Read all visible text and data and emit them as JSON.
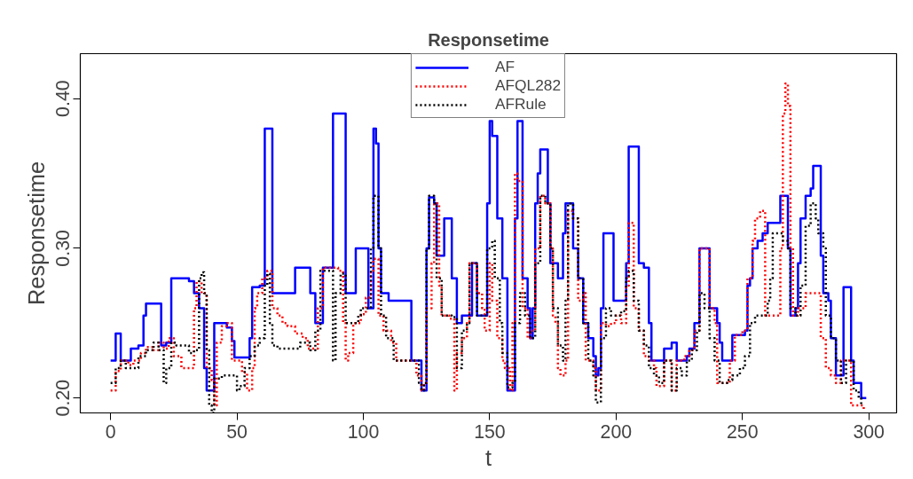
{
  "chart_data": {
    "type": "step",
    "title": "Responsetime",
    "xlabel": "t",
    "ylabel": "Responsetime",
    "xlim": [
      -12,
      311
    ],
    "ylim": [
      0.19,
      0.43
    ],
    "xticks": [
      0,
      50,
      100,
      150,
      200,
      250,
      300
    ],
    "yticks": [
      {
        "value": 0.2,
        "label": "0.20"
      },
      {
        "value": 0.3,
        "label": "0.30"
      },
      {
        "value": 0.4,
        "label": "0.40"
      }
    ],
    "grid": false,
    "legend": "top",
    "series": [
      {
        "name": "AF",
        "color": "#0000ff",
        "line_style": "solid",
        "x": [
          0,
          2,
          4,
          7,
          8,
          11,
          13,
          14,
          20,
          22,
          24,
          29,
          31,
          33,
          35,
          37,
          38,
          40,
          41,
          46,
          48,
          49,
          54,
          55,
          56,
          59,
          61,
          63,
          64,
          71,
          73,
          78,
          79,
          81,
          83,
          84,
          87,
          88,
          91,
          93,
          96,
          97,
          101,
          102,
          103,
          104,
          105,
          106,
          107,
          110,
          117,
          119,
          123,
          124,
          125,
          126,
          128,
          129,
          131,
          132,
          134,
          135,
          137,
          139,
          142,
          143,
          144,
          145,
          148,
          149,
          150,
          151,
          153,
          155,
          157,
          159,
          160,
          161,
          163,
          165,
          166,
          167,
          168,
          169,
          170,
          172,
          173,
          174,
          175,
          177,
          179,
          180,
          182,
          183,
          185,
          187,
          189,
          190,
          191,
          192,
          193,
          194,
          195,
          198,
          199,
          202,
          204,
          205,
          208,
          209,
          211,
          213,
          214,
          218,
          219,
          221,
          222,
          224,
          225,
          228,
          229,
          231,
          233,
          236,
          237,
          239,
          240,
          241,
          242,
          245,
          246,
          249,
          251,
          252,
          253,
          254,
          256,
          258,
          260,
          264,
          265,
          267,
          268,
          269,
          271,
          272,
          273,
          275,
          277,
          278,
          280,
          281,
          282,
          284,
          285,
          287,
          289,
          290,
          292,
          293,
          294,
          297,
          299
        ],
        "values": [
          0.225,
          0.243,
          0.225,
          0.225,
          0.233,
          0.235,
          0.255,
          0.263,
          0.235,
          0.237,
          0.28,
          0.28,
          0.278,
          0.27,
          0.26,
          0.22,
          0.205,
          0.205,
          0.25,
          0.247,
          0.238,
          0.227,
          0.227,
          0.24,
          0.274,
          0.275,
          0.38,
          0.38,
          0.27,
          0.27,
          0.287,
          0.287,
          0.27,
          0.25,
          0.25,
          0.287,
          0.287,
          0.39,
          0.39,
          0.27,
          0.27,
          0.3,
          0.3,
          0.26,
          0.26,
          0.38,
          0.37,
          0.3,
          0.27,
          0.265,
          0.265,
          0.225,
          0.205,
          0.205,
          0.3,
          0.334,
          0.33,
          0.295,
          0.295,
          0.32,
          0.32,
          0.28,
          0.25,
          0.255,
          0.255,
          0.29,
          0.29,
          0.255,
          0.255,
          0.33,
          0.385,
          0.375,
          0.32,
          0.28,
          0.205,
          0.205,
          0.32,
          0.385,
          0.28,
          0.26,
          0.24,
          0.26,
          0.33,
          0.35,
          0.366,
          0.366,
          0.33,
          0.29,
          0.29,
          0.28,
          0.31,
          0.33,
          0.33,
          0.3,
          0.28,
          0.25,
          0.24,
          0.24,
          0.228,
          0.215,
          0.22,
          0.26,
          0.31,
          0.31,
          0.265,
          0.265,
          0.29,
          0.368,
          0.368,
          0.29,
          0.287,
          0.25,
          0.225,
          0.225,
          0.233,
          0.233,
          0.237,
          0.225,
          0.225,
          0.228,
          0.233,
          0.25,
          0.3,
          0.3,
          0.26,
          0.26,
          0.25,
          0.237,
          0.225,
          0.225,
          0.242,
          0.242,
          0.245,
          0.275,
          0.28,
          0.3,
          0.305,
          0.31,
          0.317,
          0.317,
          0.335,
          0.335,
          0.3,
          0.255,
          0.26,
          0.29,
          0.32,
          0.335,
          0.34,
          0.355,
          0.355,
          0.295,
          0.27,
          0.265,
          0.24,
          0.215,
          0.215,
          0.274,
          0.274,
          0.225,
          0.21,
          0.2,
          0.2
        ]
      },
      {
        "name": "AFQL282",
        "color": "#ff0000",
        "line_style": "dotted",
        "x": [
          0,
          2,
          4,
          7,
          9,
          12,
          14,
          17,
          19,
          21,
          23,
          25,
          28,
          31,
          33,
          34,
          36,
          38,
          40,
          41,
          42,
          44,
          46,
          48,
          50,
          52,
          54,
          56,
          57,
          58,
          60,
          62,
          64,
          66,
          68,
          70,
          73,
          76,
          78,
          80,
          82,
          84,
          88,
          90,
          92,
          93,
          94,
          96,
          99,
          101,
          103,
          104,
          106,
          108,
          111,
          113,
          120,
          121,
          123,
          124,
          125,
          127,
          128,
          130,
          131,
          134,
          136,
          137,
          139,
          141,
          142,
          144,
          145,
          147,
          148,
          150,
          151,
          153,
          155,
          156,
          158,
          159,
          160,
          161,
          163,
          165,
          166,
          168,
          170,
          172,
          174,
          175,
          176,
          177,
          178,
          180,
          181,
          183,
          185,
          187,
          188,
          191,
          192,
          194,
          196,
          198,
          200,
          202,
          204,
          205,
          206,
          207,
          209,
          211,
          213,
          215,
          216,
          218,
          219,
          221,
          222,
          224,
          227,
          229,
          231,
          233,
          236,
          237,
          239,
          240,
          243,
          245,
          247,
          250,
          252,
          254,
          255,
          257,
          259,
          263,
          265,
          266,
          267,
          268,
          269,
          270,
          272,
          275,
          279,
          281,
          283,
          285,
          287,
          289,
          291,
          293,
          296,
          298
        ],
        "values": [
          0.205,
          0.218,
          0.225,
          0.222,
          0.225,
          0.23,
          0.234,
          0.232,
          0.237,
          0.233,
          0.24,
          0.228,
          0.22,
          0.22,
          0.26,
          0.278,
          0.27,
          0.22,
          0.212,
          0.195,
          0.237,
          0.248,
          0.25,
          0.225,
          0.225,
          0.217,
          0.205,
          0.22,
          0.26,
          0.27,
          0.28,
          0.285,
          0.26,
          0.255,
          0.25,
          0.248,
          0.243,
          0.24,
          0.233,
          0.233,
          0.26,
          0.287,
          0.287,
          0.285,
          0.25,
          0.225,
          0.23,
          0.25,
          0.256,
          0.267,
          0.285,
          0.293,
          0.255,
          0.245,
          0.237,
          0.225,
          0.225,
          0.215,
          0.205,
          0.21,
          0.26,
          0.29,
          0.33,
          0.275,
          0.255,
          0.253,
          0.205,
          0.23,
          0.24,
          0.25,
          0.29,
          0.29,
          0.27,
          0.26,
          0.245,
          0.29,
          0.265,
          0.24,
          0.225,
          0.22,
          0.205,
          0.25,
          0.35,
          0.345,
          0.26,
          0.24,
          0.245,
          0.3,
          0.335,
          0.33,
          0.3,
          0.255,
          0.25,
          0.22,
          0.215,
          0.225,
          0.325,
          0.32,
          0.265,
          0.27,
          0.225,
          0.22,
          0.205,
          0.25,
          0.248,
          0.25,
          0.255,
          0.25,
          0.275,
          0.317,
          0.317,
          0.26,
          0.245,
          0.228,
          0.225,
          0.22,
          0.208,
          0.208,
          0.225,
          0.225,
          0.205,
          0.225,
          0.228,
          0.232,
          0.245,
          0.3,
          0.3,
          0.26,
          0.25,
          0.21,
          0.21,
          0.225,
          0.242,
          0.245,
          0.28,
          0.305,
          0.32,
          0.325,
          0.255,
          0.255,
          0.3,
          0.39,
          0.41,
          0.395,
          0.3,
          0.255,
          0.26,
          0.27,
          0.27,
          0.24,
          0.22,
          0.215,
          0.21,
          0.225,
          0.225,
          0.195,
          0.195,
          0.192
        ]
      },
      {
        "name": "AFRule",
        "color": "#000000",
        "line_style": "dotted",
        "x": [
          0,
          2,
          4,
          6,
          9,
          11,
          14,
          17,
          19,
          21,
          22,
          24,
          26,
          28,
          31,
          33,
          35,
          36,
          37,
          38,
          39,
          40,
          41,
          44,
          48,
          50,
          51,
          53,
          55,
          57,
          59,
          61,
          62,
          63,
          64,
          66,
          70,
          75,
          77,
          79,
          81,
          83,
          86,
          88,
          89,
          91,
          93,
          96,
          98,
          99,
          101,
          103,
          104,
          106,
          107,
          109,
          112,
          120,
          122,
          123,
          124,
          125,
          126,
          128,
          129,
          131,
          133,
          135,
          137,
          139,
          141,
          142,
          144,
          145,
          148,
          149,
          151,
          152,
          154,
          155,
          157,
          159,
          160,
          162,
          164,
          166,
          168,
          170,
          172,
          174,
          175,
          177,
          179,
          180,
          181,
          183,
          185,
          187,
          189,
          191,
          192,
          194,
          196,
          198,
          200,
          202,
          204,
          205,
          207,
          209,
          211,
          213,
          215,
          217,
          219,
          221,
          222,
          224,
          226,
          228,
          230,
          232,
          233,
          235,
          237,
          239,
          241,
          244,
          246,
          249,
          251,
          253,
          255,
          258,
          260,
          261,
          262,
          264,
          266,
          268,
          269,
          271,
          273,
          275,
          277,
          279,
          280,
          282,
          283,
          285,
          287,
          289,
          291,
          293,
          294,
          296,
          297
        ],
        "values": [
          0.21,
          0.22,
          0.225,
          0.22,
          0.22,
          0.228,
          0.232,
          0.237,
          0.232,
          0.21,
          0.22,
          0.237,
          0.235,
          0.235,
          0.23,
          0.232,
          0.28,
          0.284,
          0.27,
          0.232,
          0.195,
          0.19,
          0.213,
          0.215,
          0.215,
          0.205,
          0.208,
          0.22,
          0.228,
          0.235,
          0.24,
          0.275,
          0.283,
          0.25,
          0.235,
          0.233,
          0.233,
          0.237,
          0.237,
          0.232,
          0.245,
          0.285,
          0.285,
          0.225,
          0.27,
          0.283,
          0.25,
          0.25,
          0.255,
          0.26,
          0.26,
          0.3,
          0.335,
          0.3,
          0.255,
          0.24,
          0.225,
          0.225,
          0.21,
          0.205,
          0.21,
          0.3,
          0.335,
          0.33,
          0.28,
          0.255,
          0.255,
          0.254,
          0.22,
          0.245,
          0.25,
          0.29,
          0.29,
          0.255,
          0.255,
          0.3,
          0.305,
          0.28,
          0.25,
          0.23,
          0.207,
          0.21,
          0.25,
          0.27,
          0.255,
          0.24,
          0.29,
          0.335,
          0.33,
          0.3,
          0.26,
          0.235,
          0.225,
          0.265,
          0.33,
          0.32,
          0.28,
          0.25,
          0.225,
          0.215,
          0.197,
          0.24,
          0.26,
          0.255,
          0.255,
          0.258,
          0.28,
          0.285,
          0.265,
          0.245,
          0.235,
          0.22,
          0.215,
          0.21,
          0.225,
          0.225,
          0.205,
          0.22,
          0.215,
          0.225,
          0.232,
          0.245,
          0.27,
          0.26,
          0.24,
          0.225,
          0.21,
          0.212,
          0.215,
          0.22,
          0.228,
          0.25,
          0.255,
          0.255,
          0.265,
          0.28,
          0.31,
          0.31,
          0.305,
          0.3,
          0.26,
          0.255,
          0.275,
          0.315,
          0.33,
          0.32,
          0.31,
          0.3,
          0.255,
          0.24,
          0.225,
          0.21,
          0.225,
          0.225,
          0.205,
          0.2,
          0.195
        ]
      }
    ]
  }
}
